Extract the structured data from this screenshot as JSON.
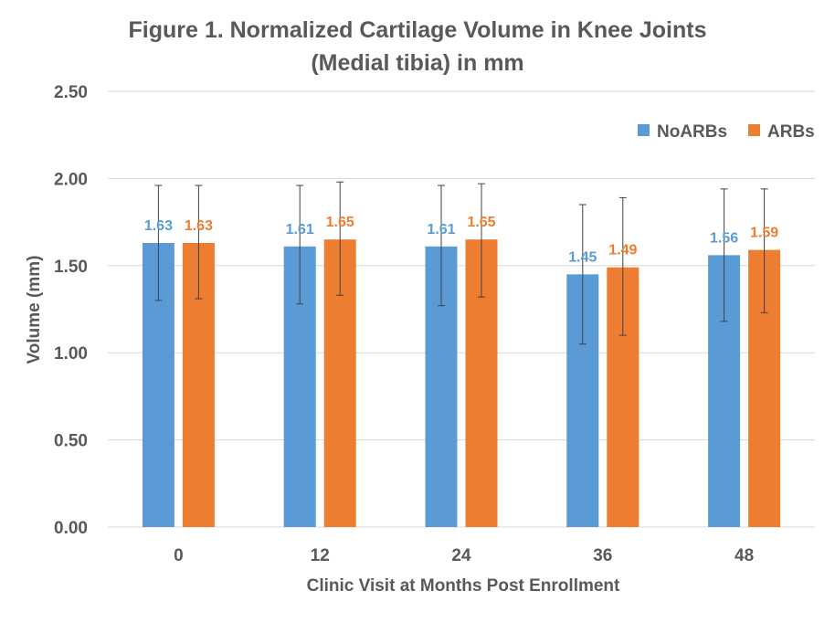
{
  "chart_data": {
    "type": "bar",
    "title_line1": "Figure 1. Normalized Cartilage Volume in Knee Joints",
    "title_line2": "(Medial tibia) in mm",
    "xlabel": "Clinic Visit at Months Post Enrollment",
    "ylabel": "Volume (mm)",
    "categories": [
      "0",
      "12",
      "24",
      "36",
      "48"
    ],
    "ylim": [
      0,
      2.5
    ],
    "yticks": [
      "0.00",
      "0.50",
      "1.00",
      "1.50",
      "2.00",
      "2.50"
    ],
    "ytick_values": [
      0,
      0.5,
      1.0,
      1.5,
      2.0,
      2.5
    ],
    "grid": true,
    "legend_position": "top-right",
    "series": [
      {
        "name": "NoARBs",
        "color": "#5B9BD5",
        "values": [
          1.63,
          1.61,
          1.61,
          1.45,
          1.56
        ],
        "labels": [
          "1.63",
          "1.61",
          "1.61",
          "1.45",
          "1.56"
        ],
        "error_low": [
          1.3,
          1.28,
          1.27,
          1.05,
          1.18
        ],
        "error_high": [
          1.96,
          1.96,
          1.96,
          1.85,
          1.94
        ]
      },
      {
        "name": "ARBs",
        "color": "#ED7D31",
        "values": [
          1.63,
          1.65,
          1.65,
          1.49,
          1.59
        ],
        "labels": [
          "1.63",
          "1.65",
          "1.65",
          "1.49",
          "1.59"
        ],
        "error_low": [
          1.31,
          1.33,
          1.32,
          1.1,
          1.23
        ],
        "error_high": [
          1.96,
          1.98,
          1.97,
          1.89,
          1.94
        ]
      }
    ]
  }
}
